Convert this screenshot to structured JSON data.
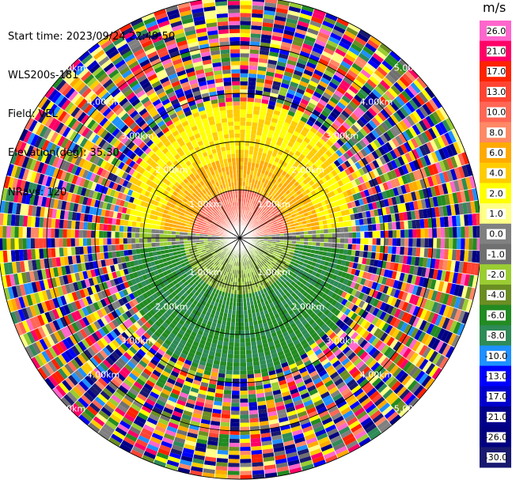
{
  "header": {
    "start_time": "Start time: 2023/09/24 22:49:50",
    "site": "WLS200s-181",
    "field": "Field: VEL",
    "elevation": "Elevation(deg): 35.30",
    "nrays": "NRays: 120"
  },
  "chart_data": {
    "type": "heatmap",
    "projection": "polar-ppi",
    "units_title": "m/s",
    "n_rays": 120,
    "max_range_km": 5.0,
    "range_rings_km": [
      1,
      2,
      3,
      4,
      5
    ],
    "ring_labels": [
      "1.00km",
      "2.00km",
      "3.00km",
      "4.00km",
      "5.00km"
    ],
    "colorbar": {
      "min": -30.0,
      "max": 30.0,
      "tick_labels": [
        "26.0",
        "21.0",
        "17.0",
        "13.0",
        "10.0",
        "8.0",
        "6.0",
        "4.0",
        "2.0",
        "1.0",
        "0.0",
        "-1.0",
        "-2.0",
        "-4.0",
        "-6.0",
        "-8.0",
        "-10.0",
        "-13.0",
        "-17.0",
        "-21.0",
        "-26.0",
        "-30.0"
      ],
      "colors": [
        "#ff66cc",
        "#ff0066",
        "#ff2200",
        "#ff4433",
        "#ff6655",
        "#ff8866",
        "#ffaa00",
        "#ffcc00",
        "#ffff00",
        "#ffff88",
        "#808080",
        "#707070",
        "#9acd32",
        "#6b8e23",
        "#228b22",
        "#2e8b57",
        "#1e90ff",
        "#0000ff",
        "#0000cd",
        "#00008b",
        "#000080",
        "#191970"
      ]
    },
    "field_description": {
      "near_field_velocity_north_ms": [
        13,
        8,
        4,
        2
      ],
      "near_field_velocity_south_ms": [
        -4,
        -6,
        -8
      ],
      "near_field_radius_km": 2.4,
      "far_field": "noise"
    }
  }
}
